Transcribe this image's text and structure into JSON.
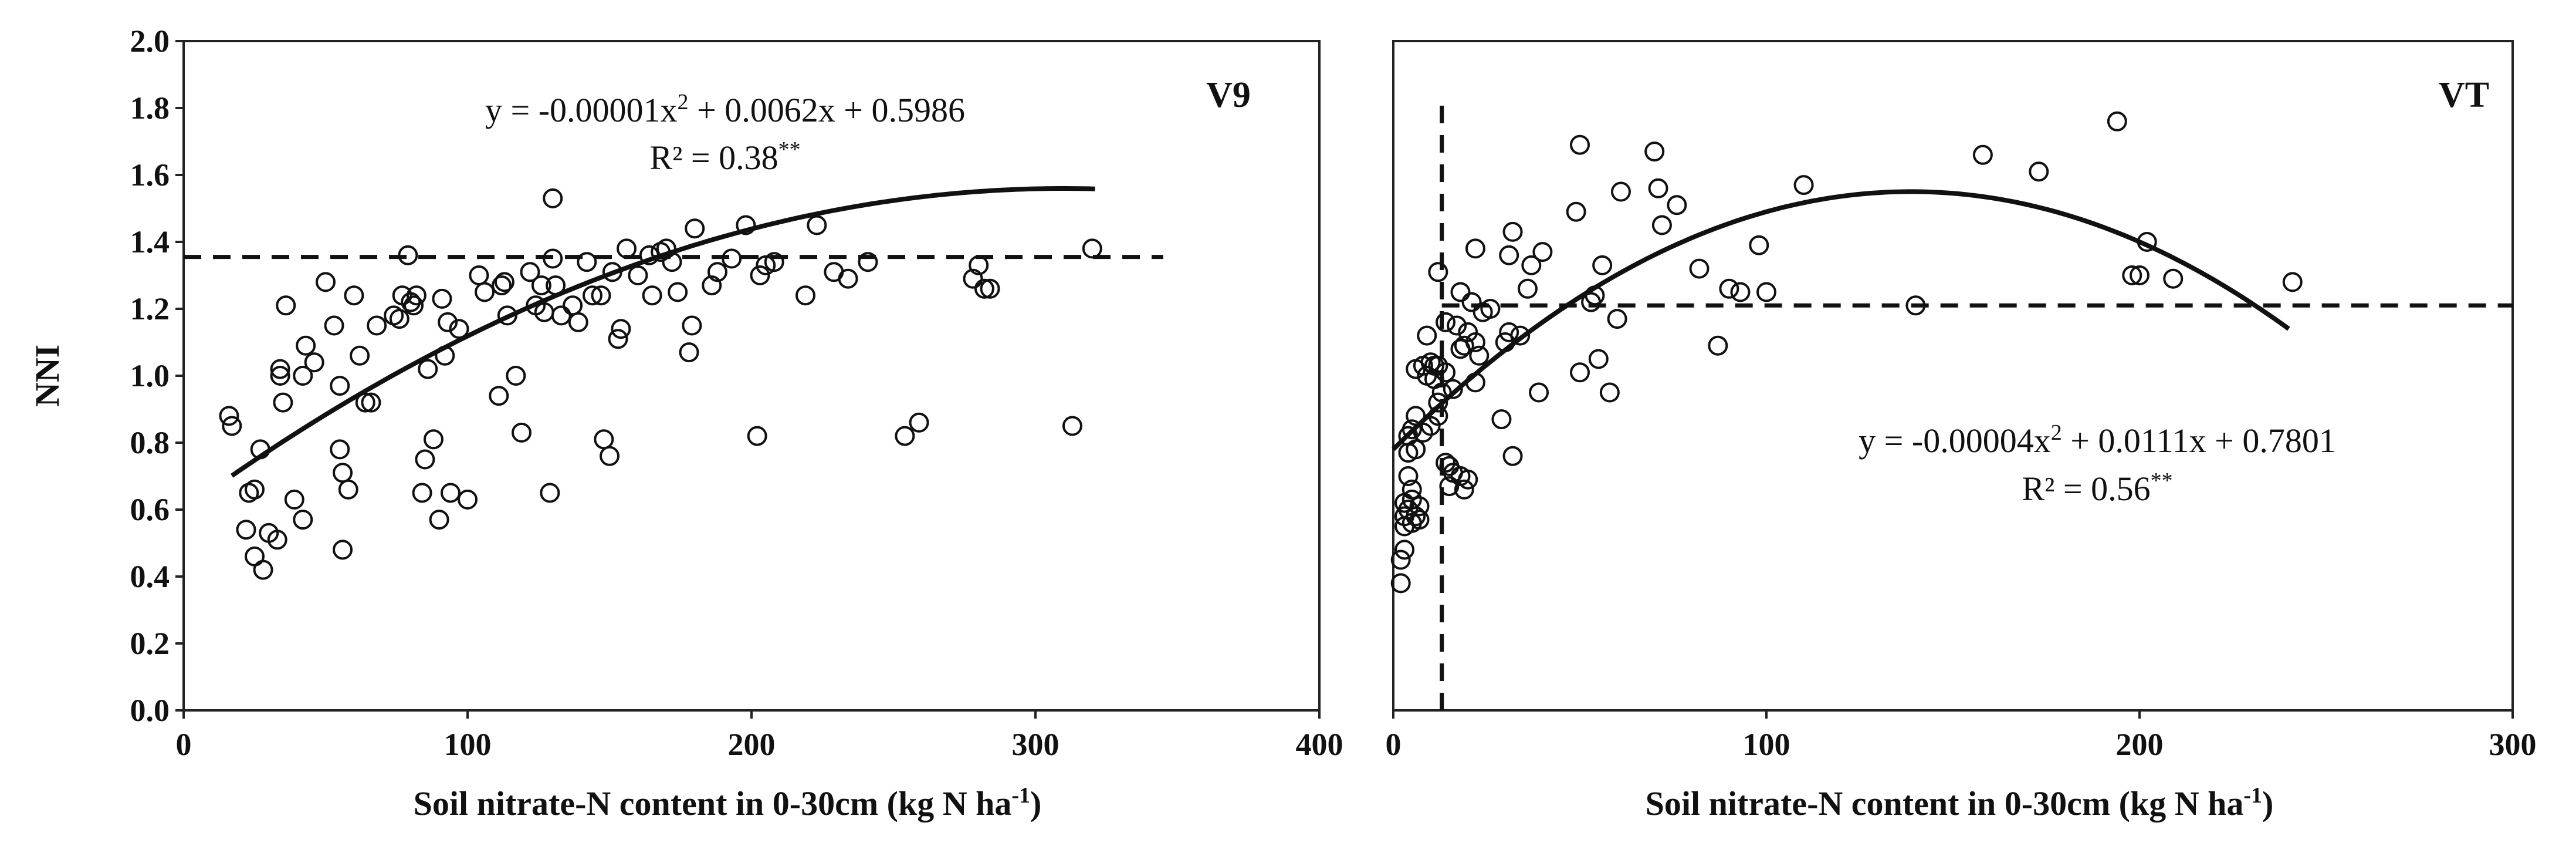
{
  "chart_data": [
    {
      "type": "scatter",
      "panel": "V9",
      "ylabel": "NNI",
      "xlabel": "Soil nitrate-N content in 0-30cm (kg N ha-1)",
      "xlabel_main": "Soil nitrate-N content in 0-30cm (kg N ha",
      "xlabel_sup": "-1",
      "xlabel_end": ")",
      "xlim": [
        0,
        400
      ],
      "ylim": [
        0,
        2.0
      ],
      "xticks": [
        "0",
        "100",
        "200",
        "300",
        "400"
      ],
      "yticks": [
        "0.0",
        "0.2",
        "0.4",
        "0.6",
        "0.8",
        "1.0",
        "1.2",
        "1.4",
        "1.6",
        "1.8",
        "2.0"
      ],
      "equation_main": "y = -0.00001x",
      "equation_sup": "2",
      "equation_rest": " + 0.0062x + 0.5986",
      "r2_text": "R² = 0.38",
      "r2_sig": "**",
      "fit": {
        "a": -1e-05,
        "b": 0.0062,
        "c": 0.5986,
        "x_start": 17,
        "x_end": 321
      },
      "reference_line": {
        "orientation": "horizontal",
        "value": 1.355,
        "x_start": 0,
        "x_end": 345
      },
      "points": [
        [
          16,
          0.88
        ],
        [
          17,
          0.85
        ],
        [
          22,
          0.54
        ],
        [
          23,
          0.65
        ],
        [
          25,
          0.46
        ],
        [
          25,
          0.66
        ],
        [
          27,
          0.78
        ],
        [
          28,
          0.42
        ],
        [
          30,
          0.53
        ],
        [
          33,
          0.51
        ],
        [
          34,
          1.0
        ],
        [
          34,
          1.02
        ],
        [
          35,
          0.92
        ],
        [
          36,
          1.21
        ],
        [
          39,
          0.63
        ],
        [
          42,
          0.57
        ],
        [
          42,
          1.0
        ],
        [
          43,
          1.09
        ],
        [
          46,
          1.04
        ],
        [
          50,
          1.28
        ],
        [
          53,
          1.15
        ],
        [
          55,
          0.97
        ],
        [
          55,
          0.78
        ],
        [
          56,
          0.48
        ],
        [
          56,
          0.71
        ],
        [
          58,
          0.66
        ],
        [
          60,
          1.24
        ],
        [
          62,
          1.06
        ],
        [
          64,
          0.92
        ],
        [
          66,
          0.92
        ],
        [
          68,
          1.15
        ],
        [
          74,
          1.18
        ],
        [
          76,
          1.17
        ],
        [
          77,
          1.24
        ],
        [
          79,
          1.36
        ],
        [
          80,
          1.22
        ],
        [
          81,
          1.21
        ],
        [
          82,
          1.24
        ],
        [
          84,
          0.65
        ],
        [
          85,
          0.75
        ],
        [
          86,
          1.02
        ],
        [
          88,
          0.81
        ],
        [
          90,
          0.57
        ],
        [
          91,
          1.23
        ],
        [
          92,
          1.06
        ],
        [
          93,
          1.16
        ],
        [
          94,
          0.65
        ],
        [
          97,
          1.14
        ],
        [
          100,
          0.63
        ],
        [
          104,
          1.3
        ],
        [
          106,
          1.25
        ],
        [
          111,
          0.94
        ],
        [
          112,
          1.27
        ],
        [
          113,
          1.28
        ],
        [
          114,
          1.18
        ],
        [
          117,
          1.0
        ],
        [
          119,
          0.83
        ],
        [
          122,
          1.31
        ],
        [
          124,
          1.21
        ],
        [
          126,
          1.27
        ],
        [
          127,
          1.19
        ],
        [
          129,
          0.65
        ],
        [
          130,
          1.53
        ],
        [
          130,
          1.35
        ],
        [
          131,
          1.27
        ],
        [
          133,
          1.18
        ],
        [
          137,
          1.21
        ],
        [
          139,
          1.16
        ],
        [
          142,
          1.34
        ],
        [
          144,
          1.24
        ],
        [
          147,
          1.24
        ],
        [
          148,
          0.81
        ],
        [
          150,
          0.76
        ],
        [
          151,
          1.31
        ],
        [
          153,
          1.11
        ],
        [
          154,
          1.14
        ],
        [
          156,
          1.38
        ],
        [
          160,
          1.3
        ],
        [
          164,
          1.36
        ],
        [
          165,
          1.24
        ],
        [
          168,
          1.37
        ],
        [
          170,
          1.38
        ],
        [
          172,
          1.34
        ],
        [
          174,
          1.25
        ],
        [
          178,
          1.07
        ],
        [
          179,
          1.15
        ],
        [
          180,
          1.44
        ],
        [
          186,
          1.27
        ],
        [
          188,
          1.31
        ],
        [
          193,
          1.35
        ],
        [
          198,
          1.45
        ],
        [
          202,
          0.82
        ],
        [
          203,
          1.3
        ],
        [
          205,
          1.33
        ],
        [
          208,
          1.34
        ],
        [
          219,
          1.24
        ],
        [
          223,
          1.45
        ],
        [
          229,
          1.31
        ],
        [
          234,
          1.29
        ],
        [
          241,
          1.34
        ],
        [
          254,
          0.82
        ],
        [
          259,
          0.86
        ],
        [
          278,
          1.29
        ],
        [
          280,
          1.33
        ],
        [
          282,
          1.26
        ],
        [
          284,
          1.26
        ],
        [
          313,
          0.85
        ],
        [
          320,
          1.38
        ]
      ]
    },
    {
      "type": "scatter",
      "panel": "VT",
      "ylabel": "",
      "xlabel": "Soil nitrate-N content in 0-30cm (kg N ha-1)",
      "xlabel_main": "Soil nitrate-N content in 0-30cm (kg N ha",
      "xlabel_sup": "-1",
      "xlabel_end": ")",
      "xlim": [
        0,
        300
      ],
      "ylim": [
        0,
        2.0
      ],
      "xticks": [
        "0",
        "100",
        "200",
        "300"
      ],
      "equation_main": "y = -0.00004x",
      "equation_sup": "2",
      "equation_rest": " + 0.0111x + 0.7801",
      "r2_text": "R² = 0.56",
      "r2_sig": "**",
      "fit": {
        "a": -4e-05,
        "b": 0.0111,
        "c": 0.7801,
        "x_start": 0,
        "x_end": 240
      },
      "reference_lines": [
        {
          "orientation": "horizontal",
          "value": 1.21,
          "x_start": 13,
          "x_end": 300
        },
        {
          "orientation": "vertical",
          "value": 13,
          "y_start": 0,
          "y_end": 1.82
        }
      ],
      "points": [
        [
          2,
          0.38
        ],
        [
          2,
          0.45
        ],
        [
          3,
          0.48
        ],
        [
          3,
          0.55
        ],
        [
          3,
          0.58
        ],
        [
          3,
          0.62
        ],
        [
          4,
          0.6
        ],
        [
          4,
          0.7
        ],
        [
          4,
          0.77
        ],
        [
          4,
          0.82
        ],
        [
          5,
          0.56
        ],
        [
          5,
          0.63
        ],
        [
          5,
          0.66
        ],
        [
          5,
          0.84
        ],
        [
          6,
          0.58
        ],
        [
          6,
          0.78
        ],
        [
          6,
          0.88
        ],
        [
          6,
          1.02
        ],
        [
          7,
          0.57
        ],
        [
          7,
          0.61
        ],
        [
          8,
          0.83
        ],
        [
          8,
          1.03
        ],
        [
          9,
          1.0
        ],
        [
          9,
          1.12
        ],
        [
          10,
          0.85
        ],
        [
          10,
          1.04
        ],
        [
          11,
          0.99
        ],
        [
          11,
          1.03
        ],
        [
          12,
          0.88
        ],
        [
          12,
          0.92
        ],
        [
          12,
          1.03
        ],
        [
          12,
          1.31
        ],
        [
          13,
          0.95
        ],
        [
          14,
          1.01
        ],
        [
          14,
          0.74
        ],
        [
          14,
          1.16
        ],
        [
          15,
          0.67
        ],
        [
          15,
          0.73
        ],
        [
          16,
          0.71
        ],
        [
          16,
          0.96
        ],
        [
          17,
          1.15
        ],
        [
          18,
          0.7
        ],
        [
          18,
          1.25
        ],
        [
          18,
          1.08
        ],
        [
          19,
          0.66
        ],
        [
          19,
          1.09
        ],
        [
          20,
          0.69
        ],
        [
          20,
          1.13
        ],
        [
          21,
          1.22
        ],
        [
          22,
          0.98
        ],
        [
          22,
          1.1
        ],
        [
          22,
          1.38
        ],
        [
          23,
          1.06
        ],
        [
          24,
          1.19
        ],
        [
          26,
          1.2
        ],
        [
          29,
          0.87
        ],
        [
          30,
          1.1
        ],
        [
          31,
          1.13
        ],
        [
          31,
          1.36
        ],
        [
          32,
          0.76
        ],
        [
          32,
          1.43
        ],
        [
          34,
          1.12
        ],
        [
          36,
          1.26
        ],
        [
          37,
          1.33
        ],
        [
          39,
          0.95
        ],
        [
          40,
          1.37
        ],
        [
          49,
          1.49
        ],
        [
          50,
          1.69
        ],
        [
          50,
          1.01
        ],
        [
          53,
          1.22
        ],
        [
          54,
          1.24
        ],
        [
          55,
          1.05
        ],
        [
          56,
          1.33
        ],
        [
          58,
          0.95
        ],
        [
          60,
          1.17
        ],
        [
          61,
          1.55
        ],
        [
          70,
          1.67
        ],
        [
          71,
          1.56
        ],
        [
          72,
          1.45
        ],
        [
          76,
          1.51
        ],
        [
          82,
          1.32
        ],
        [
          87,
          1.09
        ],
        [
          90,
          1.26
        ],
        [
          93,
          1.25
        ],
        [
          98,
          1.39
        ],
        [
          100,
          1.25
        ],
        [
          110,
          1.57
        ],
        [
          140,
          1.21
        ],
        [
          158,
          1.66
        ],
        [
          173,
          1.61
        ],
        [
          194,
          1.76
        ],
        [
          198,
          1.3
        ],
        [
          200,
          1.3
        ],
        [
          202,
          1.4
        ],
        [
          209,
          1.29
        ],
        [
          241,
          1.28
        ]
      ]
    }
  ]
}
